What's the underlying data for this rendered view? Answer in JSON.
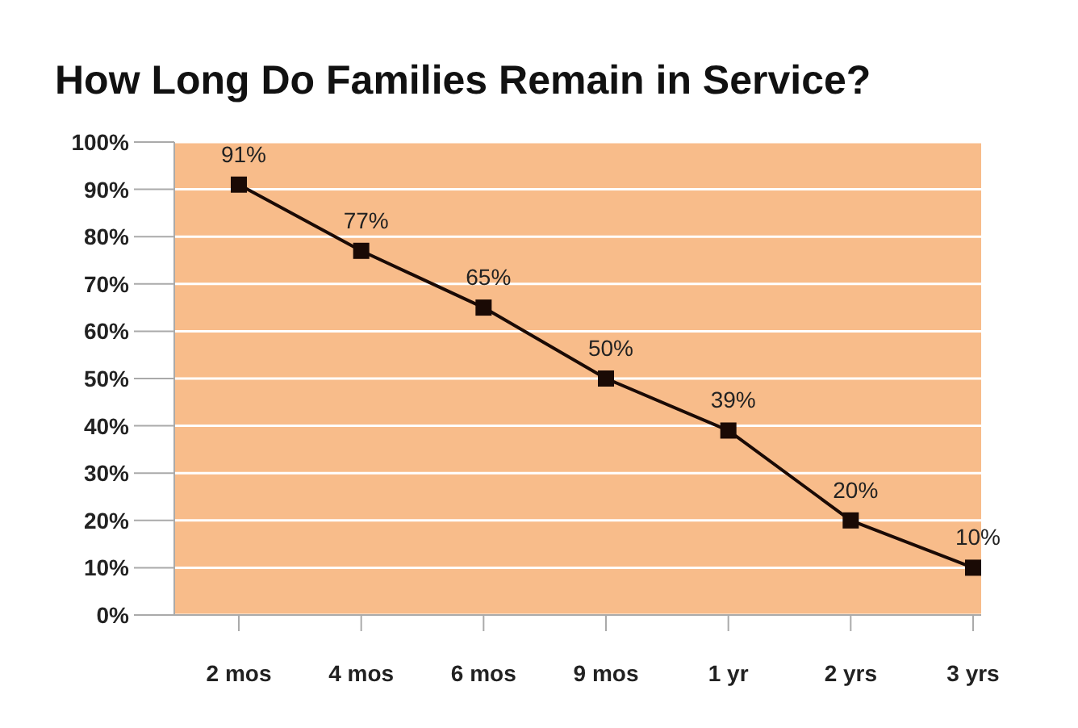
{
  "chart_data": {
    "type": "line",
    "title": "How Long Do Families Remain in Service?",
    "categories": [
      "2 mos",
      "4 mos",
      "6 mos",
      "9 mos",
      "1 yr",
      "2 yrs",
      "3 yrs"
    ],
    "values": [
      91,
      77,
      65,
      50,
      39,
      20,
      10
    ],
    "color": "#1a0a05",
    "marker": "square",
    "data_labels": true,
    "value_labels": [
      "91%",
      "77%",
      "65%",
      "50%",
      "39%",
      "20%",
      "10%"
    ],
    "ylim": [
      0,
      100
    ],
    "yticks": [
      {
        "value": 0,
        "label": "0%"
      },
      {
        "value": 10,
        "label": "10%"
      },
      {
        "value": 20,
        "label": "20%"
      },
      {
        "value": 30,
        "label": "30%"
      },
      {
        "value": 40,
        "label": "40%"
      },
      {
        "value": 50,
        "label": "50%"
      },
      {
        "value": 60,
        "label": "60%"
      },
      {
        "value": 70,
        "label": "70%"
      },
      {
        "value": 80,
        "label": "80%"
      },
      {
        "value": 90,
        "label": "90%"
      },
      {
        "value": 100,
        "label": "100%"
      }
    ],
    "grid": "y"
  }
}
